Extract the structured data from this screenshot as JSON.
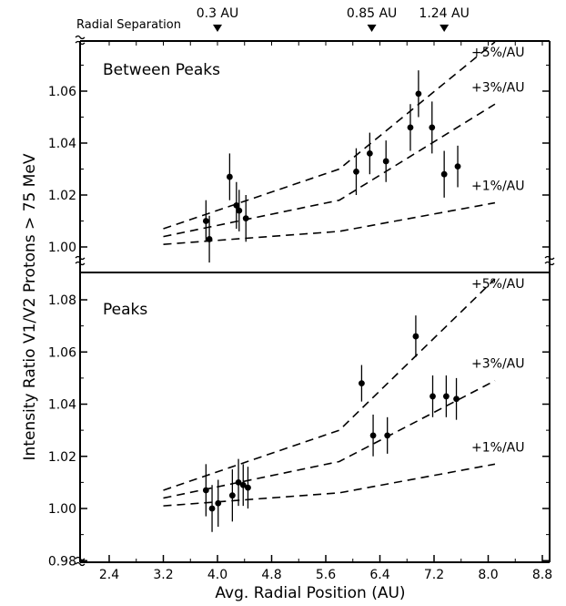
{
  "chart_data": {
    "type": "scatter",
    "ylabel": "Intensity Ratio V1/V2  Protons > 75 MeV",
    "xlabel": "Avg. Radial Position (AU)",
    "x_ticks": [
      "2.4",
      "3.2",
      "4.0",
      "4.8",
      "5.6",
      "6.4",
      "7.2",
      "8.0",
      "8.8"
    ],
    "xlim": [
      2.0,
      9.2
    ],
    "top_axis": {
      "label": "Radial Separation",
      "markers": [
        {
          "label": "0.3 AU",
          "x": 4.0
        },
        {
          "label": "0.85 AU",
          "x": 6.28
        },
        {
          "label": "1.24 AU",
          "x": 7.35
        }
      ]
    },
    "panels": [
      {
        "title": "Between Peaks",
        "ylim": [
          0.99,
          1.08
        ],
        "y_ticks": [
          "1.00",
          "1.02",
          "1.04",
          "1.06"
        ],
        "points": [
          {
            "x": 3.83,
            "y": 1.01,
            "err": 0.008
          },
          {
            "x": 3.88,
            "y": 1.003,
            "err": 0.009
          },
          {
            "x": 4.18,
            "y": 1.027,
            "err": 0.009
          },
          {
            "x": 4.28,
            "y": 1.016,
            "err": 0.009
          },
          {
            "x": 4.32,
            "y": 1.014,
            "err": 0.008
          },
          {
            "x": 4.42,
            "y": 1.011,
            "err": 0.009
          },
          {
            "x": 6.05,
            "y": 1.029,
            "err": 0.009
          },
          {
            "x": 6.25,
            "y": 1.036,
            "err": 0.008
          },
          {
            "x": 6.49,
            "y": 1.033,
            "err": 0.008
          },
          {
            "x": 6.85,
            "y": 1.046,
            "err": 0.009
          },
          {
            "x": 6.97,
            "y": 1.059,
            "err": 0.009
          },
          {
            "x": 7.17,
            "y": 1.046,
            "err": 0.01
          },
          {
            "x": 7.35,
            "y": 1.028,
            "err": 0.009
          },
          {
            "x": 7.55,
            "y": 1.031,
            "err": 0.008
          }
        ],
        "trend_lines": [
          {
            "label": "+5%/AU",
            "points": [
              [
                3.2,
                1.007
              ],
              [
                5.8,
                1.03
              ],
              [
                8.1,
                1.088
              ]
            ]
          },
          {
            "label": "+3%/AU",
            "points": [
              [
                3.2,
                1.004
              ],
              [
                5.8,
                1.018
              ],
              [
                8.1,
                1.055
              ]
            ]
          },
          {
            "label": "+1%/AU",
            "points": [
              [
                3.2,
                1.001
              ],
              [
                5.8,
                1.006
              ],
              [
                8.1,
                1.017
              ]
            ]
          }
        ]
      },
      {
        "title": "Peaks",
        "ylim": [
          0.98,
          1.095
        ],
        "y_ticks": [
          "0.98",
          "1.00",
          "1.02",
          "1.04",
          "1.06",
          "1.08"
        ],
        "points": [
          {
            "x": 3.83,
            "y": 1.007,
            "err": 0.01
          },
          {
            "x": 3.92,
            "y": 1.0,
            "err": 0.009
          },
          {
            "x": 4.01,
            "y": 1.002,
            "err": 0.009
          },
          {
            "x": 4.22,
            "y": 1.005,
            "err": 0.01
          },
          {
            "x": 4.31,
            "y": 1.01,
            "err": 0.009
          },
          {
            "x": 4.38,
            "y": 1.009,
            "err": 0.008
          },
          {
            "x": 4.45,
            "y": 1.008,
            "err": 0.008
          },
          {
            "x": 6.13,
            "y": 1.048,
            "err": 0.007
          },
          {
            "x": 6.3,
            "y": 1.028,
            "err": 0.008
          },
          {
            "x": 6.51,
            "y": 1.028,
            "err": 0.007
          },
          {
            "x": 6.93,
            "y": 1.066,
            "err": 0.008
          },
          {
            "x": 7.18,
            "y": 1.043,
            "err": 0.008
          },
          {
            "x": 7.38,
            "y": 1.043,
            "err": 0.008
          },
          {
            "x": 7.53,
            "y": 1.042,
            "err": 0.008
          }
        ],
        "trend_lines": [
          {
            "label": "+5%/AU",
            "points": [
              [
                3.2,
                1.007
              ],
              [
                5.8,
                1.03
              ],
              [
                8.1,
                1.088
              ]
            ]
          },
          {
            "label": "+3%/AU",
            "points": [
              [
                3.2,
                1.004
              ],
              [
                5.8,
                1.018
              ],
              [
                8.1,
                1.049
              ]
            ]
          },
          {
            "label": "+1%/AU",
            "points": [
              [
                3.2,
                1.001
              ],
              [
                5.8,
                1.006
              ],
              [
                8.1,
                1.017
              ]
            ]
          }
        ]
      }
    ]
  }
}
